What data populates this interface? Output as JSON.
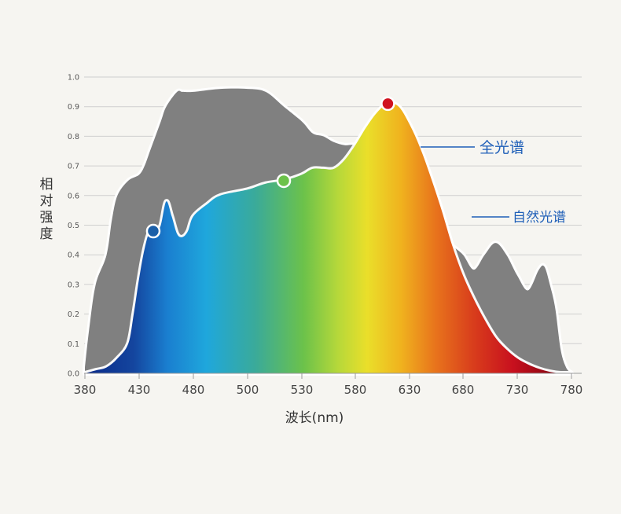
{
  "chart_data": {
    "type": "area",
    "xlabel": "波长(nm)",
    "ylabel": "相对强度",
    "xlim": [
      380,
      780
    ],
    "ylim": [
      0,
      1.0
    ],
    "x_ticks": [
      "380",
      "430",
      "480",
      "500",
      "530",
      "580",
      "630",
      "680",
      "730",
      "780"
    ],
    "y_ticks": [
      "0.0",
      "0.1",
      "0.2",
      "0.3",
      "0.4",
      "0.5",
      "0.6",
      "0.7",
      "0.8",
      "0.9",
      "1.0"
    ],
    "grid": true,
    "series": [
      {
        "name": "自然光谱",
        "color": "#808080",
        "points": [
          [
            380,
            0.02
          ],
          [
            384,
            0.15
          ],
          [
            390,
            0.3
          ],
          [
            400,
            0.4
          ],
          [
            405,
            0.52
          ],
          [
            410,
            0.6
          ],
          [
            420,
            0.65
          ],
          [
            430,
            0.67
          ],
          [
            435,
            0.7
          ],
          [
            440,
            0.75
          ],
          [
            450,
            0.85
          ],
          [
            455,
            0.9
          ],
          [
            465,
            0.95
          ],
          [
            470,
            0.95
          ],
          [
            480,
            0.95
          ],
          [
            490,
            0.96
          ],
          [
            500,
            0.96
          ],
          [
            510,
            0.95
          ],
          [
            520,
            0.9
          ],
          [
            530,
            0.85
          ],
          [
            540,
            0.81
          ],
          [
            550,
            0.8
          ],
          [
            560,
            0.78
          ],
          [
            570,
            0.77
          ],
          [
            580,
            0.77
          ],
          [
            590,
            0.75
          ],
          [
            600,
            0.72
          ],
          [
            610,
            0.65
          ],
          [
            620,
            0.58
          ],
          [
            630,
            0.55
          ],
          [
            640,
            0.53
          ],
          [
            650,
            0.52
          ],
          [
            660,
            0.46
          ],
          [
            670,
            0.43
          ],
          [
            680,
            0.4
          ],
          [
            690,
            0.35
          ],
          [
            700,
            0.4
          ],
          [
            710,
            0.44
          ],
          [
            720,
            0.4
          ],
          [
            730,
            0.33
          ],
          [
            740,
            0.28
          ],
          [
            750,
            0.35
          ],
          [
            755,
            0.36
          ],
          [
            760,
            0.3
          ],
          [
            765,
            0.22
          ],
          [
            770,
            0.08
          ],
          [
            775,
            0.02
          ],
          [
            780,
            0.0
          ]
        ]
      },
      {
        "name": "全光谱",
        "colorscale": "visible-spectrum",
        "points": [
          [
            380,
            0.0
          ],
          [
            390,
            0.01
          ],
          [
            400,
            0.02
          ],
          [
            410,
            0.05
          ],
          [
            420,
            0.1
          ],
          [
            425,
            0.2
          ],
          [
            430,
            0.32
          ],
          [
            435,
            0.42
          ],
          [
            440,
            0.48
          ],
          [
            445,
            0.47
          ],
          [
            450,
            0.5
          ],
          [
            455,
            0.58
          ],
          [
            460,
            0.53
          ],
          [
            465,
            0.47
          ],
          [
            470,
            0.46
          ],
          [
            475,
            0.48
          ],
          [
            480,
            0.53
          ],
          [
            485,
            0.57
          ],
          [
            490,
            0.6
          ],
          [
            500,
            0.62
          ],
          [
            510,
            0.64
          ],
          [
            520,
            0.65
          ],
          [
            530,
            0.67
          ],
          [
            540,
            0.69
          ],
          [
            550,
            0.69
          ],
          [
            560,
            0.69
          ],
          [
            570,
            0.72
          ],
          [
            580,
            0.77
          ],
          [
            590,
            0.83
          ],
          [
            600,
            0.88
          ],
          [
            610,
            0.91
          ],
          [
            620,
            0.9
          ],
          [
            630,
            0.84
          ],
          [
            640,
            0.76
          ],
          [
            650,
            0.66
          ],
          [
            660,
            0.55
          ],
          [
            670,
            0.43
          ],
          [
            680,
            0.33
          ],
          [
            690,
            0.25
          ],
          [
            700,
            0.18
          ],
          [
            710,
            0.12
          ],
          [
            720,
            0.08
          ],
          [
            730,
            0.05
          ],
          [
            740,
            0.03
          ],
          [
            750,
            0.015
          ],
          [
            760,
            0.005
          ],
          [
            770,
            0.0
          ],
          [
            780,
            0.0
          ]
        ]
      }
    ],
    "markers": [
      {
        "x": 443,
        "y": 0.48,
        "color": "#1b5fa8"
      },
      {
        "x": 520,
        "y": 0.65,
        "color": "#6cc24a"
      },
      {
        "x": 610,
        "y": 0.91,
        "color": "#d0121e"
      }
    ],
    "annotations": [
      {
        "text": "全光谱",
        "series": "全光谱",
        "color": "#1f5fb8"
      },
      {
        "text": "自然光谱",
        "series": "自然光谱",
        "color": "#1f5fb8"
      }
    ]
  }
}
